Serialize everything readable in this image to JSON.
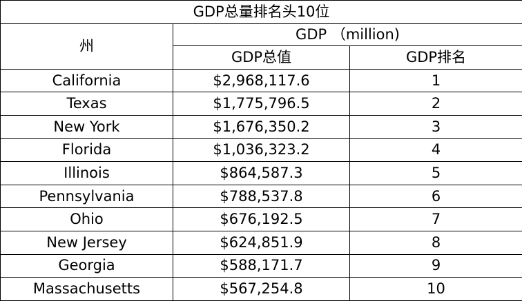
{
  "table": {
    "title": "GDP总量排名头10位",
    "state_header": "州",
    "gdp_group_header": "GDP （million)",
    "gdp_total_header": "GDP总值",
    "gdp_rank_header": "GDP排名",
    "rows": [
      {
        "state": "California",
        "gdp": "$2,968,117.6",
        "rank": "1"
      },
      {
        "state": "Texas",
        "gdp": "$1,775,796.5",
        "rank": "2"
      },
      {
        "state": "New York",
        "gdp": "$1,676,350.2",
        "rank": "3"
      },
      {
        "state": "Florida",
        "gdp": "$1,036,323.2",
        "rank": "4"
      },
      {
        "state": "Illinois",
        "gdp": "$864,587.3",
        "rank": "5"
      },
      {
        "state": "Pennsylvania",
        "gdp": "$788,537.8",
        "rank": "6"
      },
      {
        "state": "Ohio",
        "gdp": "$676,192.5",
        "rank": "7"
      },
      {
        "state": "New Jersey",
        "gdp": "$624,851.9",
        "rank": "8"
      },
      {
        "state": "Georgia",
        "gdp": "$588,171.7",
        "rank": "9"
      },
      {
        "state": "Massachusetts",
        "gdp": "$567,254.8",
        "rank": "10"
      }
    ]
  }
}
